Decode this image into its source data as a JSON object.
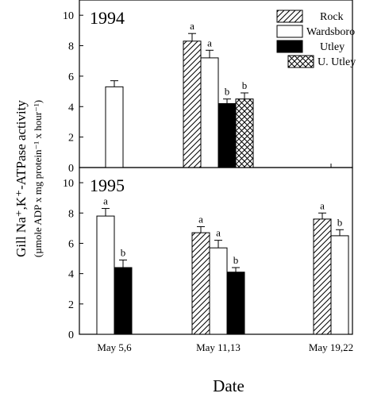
{
  "chart_data": {
    "type": "bar",
    "ylabel_line1": "Gill Na⁺,K⁺-ATPase activity",
    "ylabel_line2": "(µmole ADP x mg protein⁻¹ x hour⁻¹)",
    "xlabel": "Date",
    "categories": [
      "May 5,6",
      "May 11,13",
      "May 19,22"
    ],
    "ylim": [
      0,
      11
    ],
    "yticks": [
      0,
      2,
      4,
      6,
      8,
      10
    ],
    "legend": {
      "position": "top-right",
      "entries": [
        {
          "name": "Rock",
          "pattern": "hatch"
        },
        {
          "name": "Wardsboro",
          "pattern": "white"
        },
        {
          "name": "Utley",
          "pattern": "black"
        },
        {
          "name": "U. Utley",
          "pattern": "crosshatch"
        }
      ]
    },
    "panels": [
      {
        "label": "1994",
        "groups": [
          {
            "category": "May 5,6",
            "bars": [
              {
                "series": "Wardsboro",
                "value": 5.3,
                "error": 0.4,
                "sig": ""
              }
            ]
          },
          {
            "category": "May 11,13",
            "bars": [
              {
                "series": "Rock",
                "value": 8.3,
                "error": 0.5,
                "sig": "a"
              },
              {
                "series": "Wardsboro",
                "value": 7.2,
                "error": 0.5,
                "sig": "a"
              },
              {
                "series": "Utley",
                "value": 4.2,
                "error": 0.3,
                "sig": "b"
              },
              {
                "series": "U. Utley",
                "value": 4.5,
                "error": 0.4,
                "sig": "b"
              }
            ]
          },
          {
            "category": "May 19,22",
            "bars": []
          }
        ]
      },
      {
        "label": "1995",
        "groups": [
          {
            "category": "May 5,6",
            "bars": [
              {
                "series": "Wardsboro",
                "value": 7.8,
                "error": 0.5,
                "sig": "a"
              },
              {
                "series": "Utley",
                "value": 4.4,
                "error": 0.5,
                "sig": "b"
              }
            ]
          },
          {
            "category": "May 11,13",
            "bars": [
              {
                "series": "Rock",
                "value": 6.7,
                "error": 0.4,
                "sig": "a"
              },
              {
                "series": "Wardsboro",
                "value": 5.7,
                "error": 0.5,
                "sig": "a"
              },
              {
                "series": "Utley",
                "value": 4.1,
                "error": 0.3,
                "sig": "b"
              }
            ]
          },
          {
            "category": "May 19,22",
            "bars": [
              {
                "series": "Rock",
                "value": 7.6,
                "error": 0.4,
                "sig": "a"
              },
              {
                "series": "Wardsboro",
                "value": 6.5,
                "error": 0.4,
                "sig": "b"
              }
            ]
          }
        ]
      }
    ]
  }
}
